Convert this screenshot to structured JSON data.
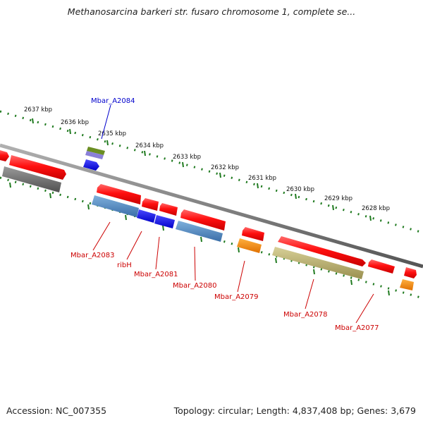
{
  "title": "Methanosarcina barkeri str. fusaro chromosome 1, complete se...",
  "accession": "Accession: NC_007355",
  "summary": "Topology: circular; Length: 4,837,408 bp; Genes: 3,679",
  "colors": {
    "backbone": "#888888",
    "dots": "#1f7a1f",
    "red_gene": "#ff1a1a",
    "blue_gene": "#1414f0",
    "steel_gene": "#4a86c0",
    "orange_gene": "#ff8c00",
    "olive_gene": "#b8b070",
    "gray_gene": "#6e6e6e",
    "label_red": "#cc0000",
    "label_blue": "#0000cc"
  },
  "ticks": [
    "2637 kbp",
    "2636 kbp",
    "2635 kbp",
    "2634 kbp",
    "2633 kbp",
    "2632 kbp",
    "2631 kbp",
    "2630 kbp",
    "2629 kbp",
    "2628 kbp"
  ],
  "gene_labels": [
    {
      "text": "Mbar_A2084",
      "color": "blue"
    },
    {
      "text": "Mbar_A2083",
      "color": "red"
    },
    {
      "text": "ribH",
      "color": "red"
    },
    {
      "text": "Mbar_A2081",
      "color": "red"
    },
    {
      "text": "Mbar_A2080",
      "color": "red"
    },
    {
      "text": "Mbar_A2079",
      "color": "red"
    },
    {
      "text": "Mbar_A2078",
      "color": "red"
    },
    {
      "text": "Mbar_A2077",
      "color": "red"
    }
  ]
}
